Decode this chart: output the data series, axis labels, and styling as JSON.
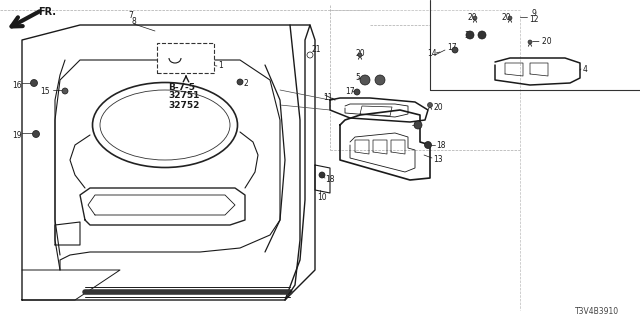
{
  "bg_color": "#ffffff",
  "line_color": "#1a1a1a",
  "gray_color": "#888888",
  "diagram_id": "T3V4B3910",
  "bold_labels": [
    "B-7-5",
    "32751",
    "32752"
  ],
  "figsize": [
    6.4,
    3.2
  ],
  "dpi": 100
}
